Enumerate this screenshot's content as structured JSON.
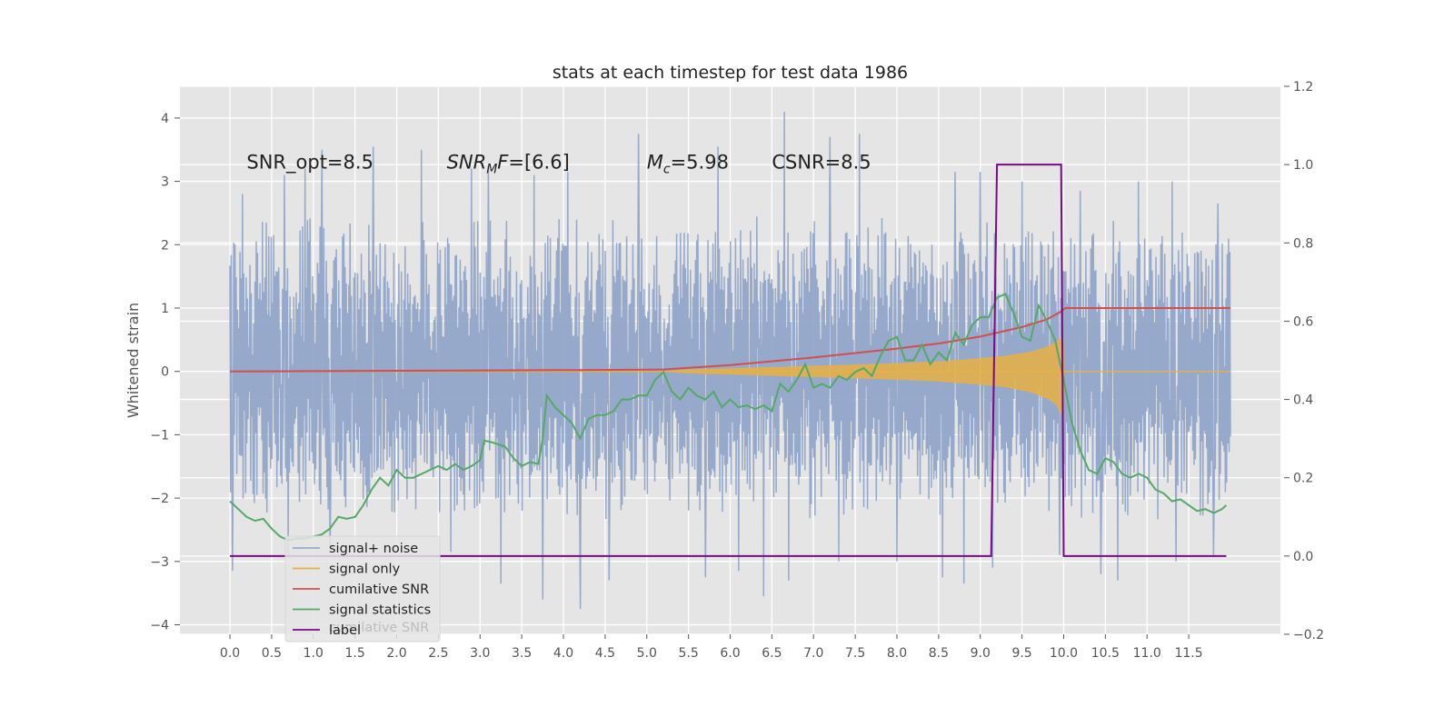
{
  "chart_data": {
    "type": "line",
    "title": "stats at each timestep for test data 1986",
    "ylabel": "Whitened strain",
    "xlim": [
      -0.6,
      12.6
    ],
    "ylim": [
      -4.15,
      4.5
    ],
    "y2lim": [
      -0.2,
      1.2
    ],
    "x_ticks": [
      0.0,
      0.5,
      1.0,
      1.5,
      2.0,
      2.5,
      3.0,
      3.5,
      4.0,
      4.5,
      5.0,
      5.5,
      6.0,
      6.5,
      7.0,
      7.5,
      8.0,
      8.5,
      9.0,
      9.5,
      10.0,
      10.5,
      11.0,
      11.5
    ],
    "x_tick_labels": [
      "0.0",
      "0.5",
      "1.0",
      "1.5",
      "2.0",
      "2.5",
      "3.0",
      "3.5",
      "4.0",
      "4.5",
      "5.0",
      "5.5",
      "6.0",
      "6.5",
      "7.0",
      "7.5",
      "8.0",
      "8.5",
      "9.0",
      "9.5",
      "10.0",
      "10.5",
      "11.0",
      "11.5"
    ],
    "y_ticks": [
      -4,
      -3,
      -2,
      -1,
      0,
      1,
      2,
      3,
      4
    ],
    "y_tick_labels": [
      "−4",
      "−3",
      "−2",
      "−1",
      "0",
      "1",
      "2",
      "3",
      "4"
    ],
    "y2_ticks": [
      -0.2,
      0.0,
      0.2,
      0.4,
      0.6,
      0.8,
      1.0,
      1.2
    ],
    "y2_tick_labels": [
      "−0.2",
      "0.0",
      "0.2",
      "0.4",
      "0.6",
      "0.8",
      "1.0",
      "1.2"
    ],
    "grid": true,
    "legend_position": "lower-left",
    "annotations": [
      {
        "text": "SNR_opt=8.5",
        "x": 0.2,
        "y": 3.3
      },
      {
        "text_main": "SNR",
        "text_sub": "M",
        "text_tail": "F=[6.6]",
        "x": 2.6,
        "y": 3.3
      },
      {
        "text_main": "M",
        "text_sub": "c",
        "text_tail": "=5.98",
        "x": 5.0,
        "y": 3.3
      },
      {
        "text": "CSNR=8.5",
        "x": 6.5,
        "y": 3.3
      }
    ],
    "legend_ghost_text": "cumilative SNR",
    "series": [
      {
        "name": "signal+ noise",
        "axis": "left",
        "color": "#8da2c8",
        "style": "noise band",
        "x_range": [
          0.0,
          12.0
        ],
        "typical_range": [
          -1.6,
          2.0
        ],
        "spike_max": 4.1,
        "spike_min": -3.75,
        "peaks": [
          [
            0.15,
            2.8
          ],
          [
            0.65,
            3.1
          ],
          [
            0.9,
            3.2
          ],
          [
            1.1,
            3.5
          ],
          [
            1.72,
            3.55
          ],
          [
            2.3,
            3.5
          ],
          [
            2.9,
            3.2
          ],
          [
            3.1,
            3.25
          ],
          [
            3.65,
            3.1
          ],
          [
            4.05,
            3.15
          ],
          [
            4.9,
            3.75
          ],
          [
            5.85,
            3.55
          ],
          [
            6.65,
            4.1
          ],
          [
            7.2,
            3.7
          ],
          [
            7.55,
            3.75
          ],
          [
            8.0,
            3.6
          ],
          [
            8.7,
            3.15
          ],
          [
            9.0,
            3.15
          ],
          [
            9.5,
            3.0
          ],
          [
            10.2,
            2.85
          ],
          [
            10.9,
            3.0
          ],
          [
            11.3,
            3.0
          ],
          [
            11.85,
            2.65
          ]
        ],
        "troughs": [
          [
            0.03,
            -3.15
          ],
          [
            0.7,
            -2.95
          ],
          [
            1.2,
            -2.8
          ],
          [
            2.65,
            -2.85
          ],
          [
            3.25,
            -3.35
          ],
          [
            3.75,
            -3.6
          ],
          [
            4.2,
            -3.75
          ],
          [
            4.55,
            -3.3
          ],
          [
            5.7,
            -3.25
          ],
          [
            6.1,
            -3.15
          ],
          [
            6.4,
            -3.55
          ],
          [
            6.7,
            -3.3
          ],
          [
            7.3,
            -3.0
          ],
          [
            8.0,
            -3.0
          ],
          [
            8.55,
            -3.25
          ],
          [
            8.8,
            -3.35
          ],
          [
            9.15,
            -3.1
          ],
          [
            9.95,
            -2.9
          ],
          [
            10.45,
            -3.2
          ],
          [
            10.65,
            -3.3
          ],
          [
            11.35,
            -3.0
          ],
          [
            11.8,
            -2.9
          ]
        ]
      },
      {
        "name": "signal only",
        "axis": "left",
        "color": "#e8b043",
        "style": "chirp envelope",
        "x": [
          0.0,
          5.2,
          5.5,
          6.0,
          6.5,
          7.0,
          7.5,
          8.0,
          8.5,
          9.0,
          9.3,
          9.6,
          9.8,
          9.9,
          9.95,
          9.99,
          10.0,
          12.0
        ],
        "upper": [
          0.0,
          0.0,
          0.02,
          0.04,
          0.06,
          0.08,
          0.1,
          0.12,
          0.15,
          0.2,
          0.24,
          0.3,
          0.38,
          0.45,
          0.5,
          0.55,
          0.0,
          0.0
        ],
        "lower": [
          0.0,
          0.0,
          -0.02,
          -0.04,
          -0.06,
          -0.08,
          -0.1,
          -0.12,
          -0.15,
          -0.2,
          -0.24,
          -0.32,
          -0.42,
          -0.5,
          -0.6,
          -0.72,
          0.0,
          0.0
        ]
      },
      {
        "name": "cumilative SNR",
        "axis": "left",
        "color": "#d04f4f",
        "x": [
          0.0,
          2.0,
          4.0,
          5.2,
          6.0,
          7.0,
          8.0,
          8.5,
          9.0,
          9.5,
          9.8,
          9.95,
          10.02,
          12.0
        ],
        "y": [
          0.0,
          0.01,
          0.02,
          0.03,
          0.1,
          0.22,
          0.36,
          0.44,
          0.55,
          0.7,
          0.82,
          0.93,
          1.0,
          1.0
        ]
      },
      {
        "name": "signal statistics",
        "axis": "right",
        "color": "#55a868",
        "x": [
          0.0,
          0.1,
          0.2,
          0.3,
          0.4,
          0.5,
          0.6,
          0.7,
          0.8,
          0.9,
          1.0,
          1.1,
          1.2,
          1.3,
          1.4,
          1.5,
          1.6,
          1.7,
          1.8,
          1.9,
          2.0,
          2.1,
          2.2,
          2.3,
          2.4,
          2.5,
          2.6,
          2.7,
          2.8,
          2.9,
          3.0,
          3.05,
          3.15,
          3.3,
          3.4,
          3.5,
          3.6,
          3.7,
          3.75,
          3.8,
          3.9,
          4.0,
          4.1,
          4.2,
          4.3,
          4.4,
          4.5,
          4.6,
          4.7,
          4.8,
          4.9,
          5.0,
          5.1,
          5.2,
          5.3,
          5.4,
          5.5,
          5.6,
          5.7,
          5.8,
          5.9,
          6.0,
          6.1,
          6.2,
          6.3,
          6.4,
          6.5,
          6.6,
          6.7,
          6.8,
          6.9,
          7.0,
          7.1,
          7.2,
          7.3,
          7.4,
          7.5,
          7.6,
          7.7,
          7.8,
          7.9,
          8.0,
          8.1,
          8.2,
          8.3,
          8.4,
          8.5,
          8.6,
          8.7,
          8.8,
          8.9,
          9.0,
          9.1,
          9.2,
          9.3,
          9.4,
          9.5,
          9.6,
          9.7,
          9.8,
          9.9,
          10.0,
          10.1,
          10.2,
          10.3,
          10.4,
          10.5,
          10.6,
          10.7,
          10.8,
          10.9,
          11.0,
          11.1,
          11.2,
          11.3,
          11.4,
          11.5,
          11.6,
          11.7,
          11.8,
          11.9,
          11.95
        ],
        "y": [
          0.14,
          0.12,
          0.1,
          0.09,
          0.095,
          0.07,
          0.05,
          0.04,
          0.045,
          0.045,
          0.05,
          0.055,
          0.07,
          0.1,
          0.095,
          0.1,
          0.13,
          0.17,
          0.2,
          0.18,
          0.22,
          0.2,
          0.2,
          0.21,
          0.22,
          0.23,
          0.22,
          0.235,
          0.22,
          0.23,
          0.245,
          0.295,
          0.29,
          0.28,
          0.25,
          0.23,
          0.24,
          0.235,
          0.3,
          0.41,
          0.38,
          0.36,
          0.34,
          0.3,
          0.35,
          0.36,
          0.36,
          0.37,
          0.4,
          0.4,
          0.41,
          0.41,
          0.45,
          0.47,
          0.42,
          0.4,
          0.43,
          0.41,
          0.4,
          0.42,
          0.38,
          0.4,
          0.38,
          0.385,
          0.375,
          0.385,
          0.37,
          0.44,
          0.42,
          0.45,
          0.49,
          0.43,
          0.44,
          0.43,
          0.46,
          0.45,
          0.47,
          0.48,
          0.46,
          0.51,
          0.55,
          0.56,
          0.5,
          0.5,
          0.54,
          0.49,
          0.52,
          0.5,
          0.57,
          0.54,
          0.59,
          0.61,
          0.61,
          0.66,
          0.67,
          0.62,
          0.56,
          0.55,
          0.64,
          0.6,
          0.55,
          0.45,
          0.34,
          0.27,
          0.22,
          0.21,
          0.25,
          0.24,
          0.21,
          0.2,
          0.21,
          0.2,
          0.17,
          0.16,
          0.14,
          0.145,
          0.13,
          0.115,
          0.12,
          0.11,
          0.12,
          0.13
        ]
      },
      {
        "name": "label",
        "axis": "right",
        "color": "#7a0a85",
        "x": [
          0.0,
          9.13,
          9.2,
          9.97,
          10.0,
          11.95
        ],
        "y": [
          0.0,
          0.0,
          1.0,
          1.0,
          0.0,
          0.0
        ]
      }
    ]
  }
}
